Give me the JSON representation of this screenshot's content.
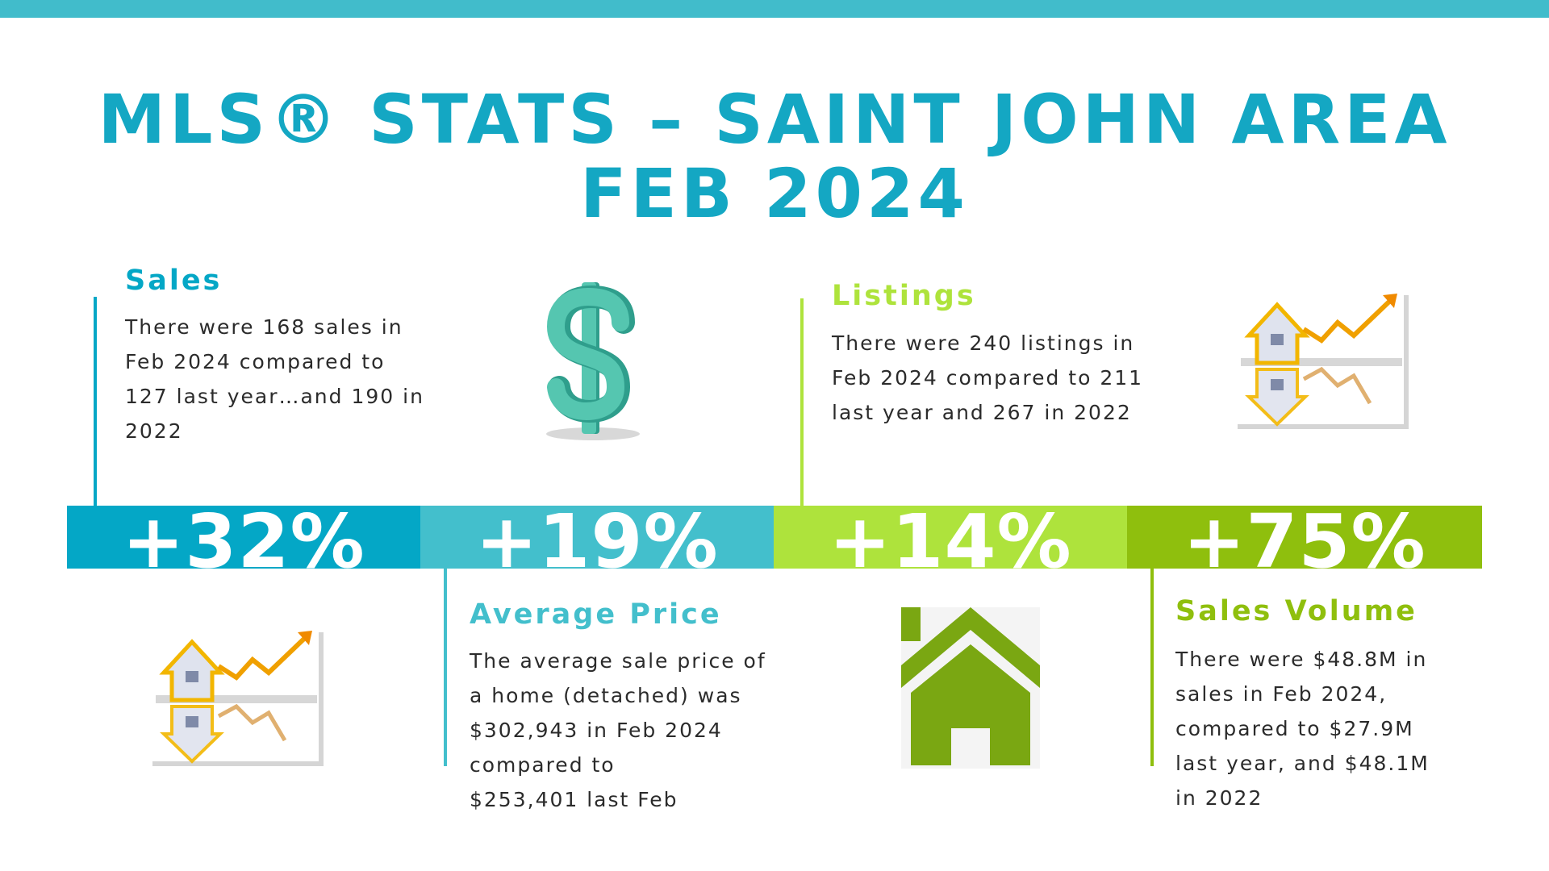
{
  "title": {
    "line1": "MLS® STATS – SAINT JOHN AREA",
    "line2": "FEB 2024"
  },
  "colors": {
    "top_bar": "#41bccb",
    "title": "#14a7c3",
    "sales": "#04a7c6",
    "average_price": "#43bfcc",
    "listings": "#aee33c",
    "sales_volume": "#8fbf0d",
    "body_text": "#2b2b2b"
  },
  "sales": {
    "heading": "Sales",
    "lines": [
      "There were 168 sales in",
      "Feb 2024 compared to",
      "127 last year…and 190 in",
      "2022"
    ],
    "change": "+32%",
    "icon": "house-chart-icon"
  },
  "average_price": {
    "heading": "Average Price",
    "lines": [
      "The average sale price of",
      "a home (detached) was",
      "$302,943 in Feb 2024",
      "compared to",
      "$253,401 last Feb"
    ],
    "change": "+19%",
    "icon": "dollar-sign-icon"
  },
  "listings": {
    "heading": "Listings",
    "lines": [
      "There were 240 listings in",
      "Feb 2024 compared to 211",
      "last year and 267 in 2022"
    ],
    "change": "+14%",
    "icon": "house-icon"
  },
  "sales_volume": {
    "heading": "Sales Volume",
    "lines": [
      "There were $48.8M in",
      "sales in Feb 2024,",
      "compared to $27.9M",
      "last year, and $48.1M",
      "in 2022"
    ],
    "change": "+75%",
    "icon": "house-chart-icon"
  }
}
